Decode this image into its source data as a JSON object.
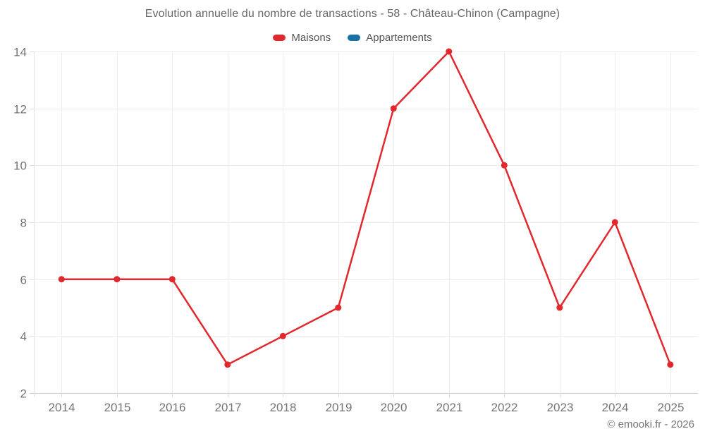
{
  "title": "Evolution annuelle du nombre de transactions - 58 - Château-Chinon (Campagne)",
  "legend": {
    "items": [
      {
        "label": "Maisons",
        "color": "#e0282d"
      },
      {
        "label": "Appartements",
        "color": "#1c70a8"
      }
    ]
  },
  "footer": {
    "credit": "© emooki.fr - 2026"
  },
  "chart_data": {
    "type": "line",
    "title": "Evolution annuelle du nombre de transactions - 58 - Château-Chinon (Campagne)",
    "categories": [
      "2014",
      "2015",
      "2016",
      "2017",
      "2018",
      "2019",
      "2020",
      "2021",
      "2022",
      "2023",
      "2024",
      "2025"
    ],
    "series": [
      {
        "name": "Maisons",
        "color": "#e0282d",
        "values": [
          6,
          6,
          6,
          3,
          4,
          5,
          12,
          14,
          10,
          5,
          8,
          3
        ]
      },
      {
        "name": "Appartements",
        "color": "#1c70a8",
        "values": []
      }
    ],
    "xlabel": "",
    "ylabel": "",
    "ylim": [
      2,
      14
    ],
    "yticks": [
      2,
      4,
      6,
      8,
      10,
      12,
      14
    ],
    "grid": true,
    "legend_position": "top",
    "colors": {
      "gridline": "#ededed",
      "axis_line": "#c9c9c9",
      "minor_axis_line": "#e3e3e3",
      "tick_mark": "#dcdcdc",
      "tick_label": "#757575"
    }
  }
}
